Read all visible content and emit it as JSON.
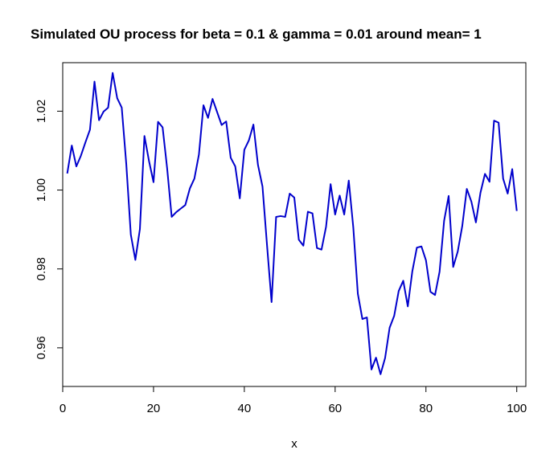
{
  "chart_data": {
    "type": "line",
    "title": "Simulated OU process for beta =  0.1 & gamma =  0.01  around mean=  1",
    "xlabel": "x",
    "ylabel": "",
    "xlim": [
      0,
      102
    ],
    "ylim": [
      0.9502,
      1.0323
    ],
    "xticks": [
      0,
      20,
      40,
      60,
      80,
      100
    ],
    "xtick_labels": [
      "0",
      "20",
      "40",
      "60",
      "80",
      "100"
    ],
    "yticks": [
      0.96,
      0.98,
      1.0,
      1.02
    ],
    "ytick_labels": [
      "0.96",
      "0.98",
      "1.00",
      "1.02"
    ],
    "grid": false,
    "legend": "none",
    "line_color": "#0000cc",
    "series": [
      {
        "x": [
          1,
          2,
          3,
          4,
          5,
          6,
          7,
          8,
          9,
          10,
          11,
          12,
          13,
          14,
          15,
          16,
          17,
          18,
          19,
          20,
          21,
          22,
          23,
          24,
          25,
          26,
          27,
          28,
          29,
          30,
          31,
          32,
          33,
          34,
          35,
          36,
          37,
          38,
          39,
          40,
          41,
          42,
          43,
          44,
          45,
          46,
          47,
          48,
          49,
          50,
          51,
          52,
          53,
          54,
          55,
          56,
          57,
          58,
          59,
          60,
          61,
          62,
          63,
          64,
          65,
          66,
          67,
          68,
          69,
          70,
          71,
          72,
          73,
          74,
          75,
          76,
          77,
          78,
          79,
          80,
          81,
          82,
          83,
          84,
          85,
          86,
          87,
          88,
          89,
          90,
          91,
          92,
          93,
          94,
          95,
          96,
          97,
          98,
          99,
          100
        ],
        "values": [
          1.0042,
          1.0113,
          1.006,
          1.0087,
          1.0121,
          1.0153,
          1.0275,
          1.0177,
          1.0199,
          1.0209,
          1.0297,
          1.0233,
          1.0209,
          1.0066,
          0.9887,
          0.9823,
          0.9901,
          1.0137,
          1.0074,
          1.002,
          1.0173,
          1.0159,
          1.0055,
          0.9932,
          0.9944,
          0.9953,
          0.9962,
          1.0004,
          1.0029,
          1.009,
          1.0215,
          1.0183,
          1.0231,
          1.0198,
          1.0165,
          1.0174,
          1.0082,
          1.006,
          0.9979,
          1.0102,
          1.0126,
          1.0166,
          1.0064,
          1.0009,
          0.986,
          0.9716,
          0.9932,
          0.9934,
          0.9932,
          0.9991,
          0.9981,
          0.9874,
          0.9859,
          0.9945,
          0.9941,
          0.9853,
          0.9849,
          0.9907,
          1.0015,
          0.9938,
          0.9986,
          0.9938,
          1.0024,
          0.9905,
          0.9737,
          0.9673,
          0.9677,
          0.9545,
          0.9575,
          0.9533,
          0.9574,
          0.9651,
          0.9681,
          0.9744,
          0.977,
          0.9705,
          0.9794,
          0.9854,
          0.9857,
          0.9822,
          0.9742,
          0.9734,
          0.9793,
          0.9922,
          0.9985,
          0.9805,
          0.9844,
          0.9909,
          1.0003,
          0.9971,
          0.9918,
          0.9993,
          1.0041,
          1.0021,
          1.0176,
          1.0171,
          1.0029,
          0.9991,
          1.0053,
          0.9947
        ]
      }
    ]
  }
}
